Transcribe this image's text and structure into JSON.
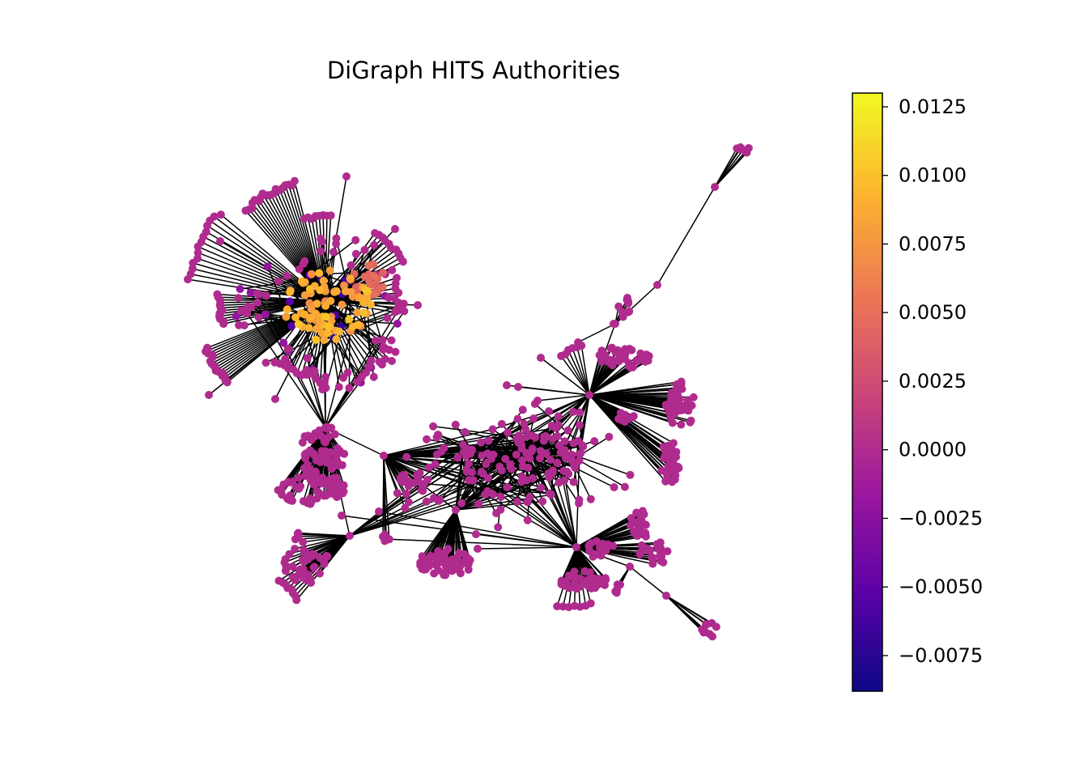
{
  "title": "DiGraph HITS Authorities",
  "colormap": {
    "name": "plasma",
    "min": -0.0088,
    "max": 0.013,
    "stops": [
      "#0d0887",
      "#5c01a6",
      "#9c179e",
      "#cc4778",
      "#ed7953",
      "#fdb42f",
      "#f0f921"
    ]
  },
  "colorbar_ticks": [
    {
      "value": 0.0125,
      "label": "0.0125"
    },
    {
      "value": 0.01,
      "label": "0.0100"
    },
    {
      "value": 0.0075,
      "label": "0.0075"
    },
    {
      "value": 0.005,
      "label": "0.0050"
    },
    {
      "value": 0.0025,
      "label": "0.0025"
    },
    {
      "value": 0.0,
      "label": "0.0000"
    },
    {
      "value": -0.0025,
      "label": "−0.0025"
    },
    {
      "value": -0.005,
      "label": "−0.0050"
    },
    {
      "value": -0.0075,
      "label": "−0.0075"
    }
  ],
  "edge_color": "#000000",
  "baseline_node_value": 0.0
}
